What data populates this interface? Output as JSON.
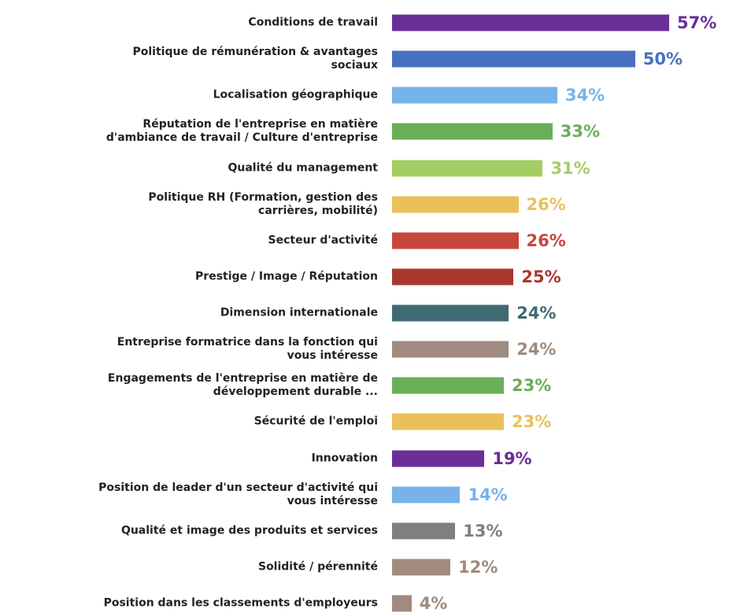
{
  "chart_data": {
    "type": "bar",
    "orientation": "horizontal",
    "categories": [
      "Conditions de travail",
      "Politique de rémunération & avantages\nsociaux",
      "Localisation géographique",
      "Réputation de l'entreprise en matière\nd'ambiance de travail / Culture d'entreprise",
      "Qualité du management",
      "Politique RH (Formation, gestion des\ncarrières, mobilité)",
      "Secteur d'activité",
      "Prestige / Image / Réputation",
      "Dimension internationale",
      "Entreprise formatrice dans la fonction qui\nvous intéresse",
      "Engagements de l'entreprise en matière de\ndéveloppement durable ...",
      "Sécurité de l'emploi",
      "Innovation",
      "Position de leader d'un secteur d'activité qui\nvous intéresse",
      "Qualité et image des produits et services",
      "Solidité / pérennité",
      "Position dans les classements d'employeurs"
    ],
    "values": [
      57,
      50,
      34,
      33,
      31,
      26,
      26,
      25,
      24,
      24,
      23,
      23,
      19,
      14,
      13,
      12,
      4
    ],
    "value_labels": [
      "57%",
      "50%",
      "34%",
      "33%",
      "31%",
      "26%",
      "26%",
      "25%",
      "24%",
      "24%",
      "23%",
      "23%",
      "19%",
      "14%",
      "13%",
      "12%",
      "4%"
    ],
    "colors": [
      "#6a2e97",
      "#4771c0",
      "#77b2ea",
      "#6aaf58",
      "#a3cf62",
      "#e9c15b",
      "#c9463a",
      "#a8382d",
      "#3e6a73",
      "#a08b7e",
      "#6aaf58",
      "#e9c15b",
      "#6a2e97",
      "#77b2ea",
      "#7f7f7f",
      "#a08b7e",
      "#a08b7e"
    ],
    "xlim": [
      0,
      57
    ],
    "grid": false,
    "legend": "none"
  }
}
